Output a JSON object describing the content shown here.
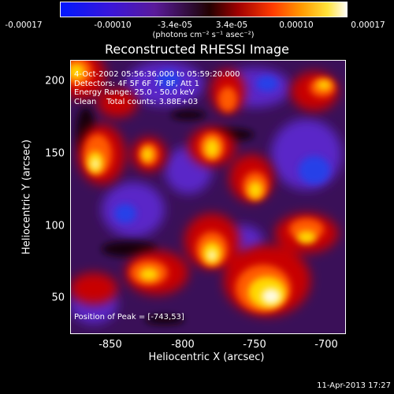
{
  "colorbar": {
    "ticks": [
      "-0.00017",
      "-0.00010",
      "-3.4e-05",
      "3.4e-05",
      "0.00010",
      "0.00017"
    ],
    "unit": "(photons cm⁻² s⁻¹ asec⁻²)"
  },
  "title": "Reconstructed RHESSI Image",
  "info": {
    "time_range": "4-Oct-2002 05:56:36.000 to 05:59:20.000",
    "detectors": "Detectors: 4F 5F 6F 7F 8F, Att 1",
    "energy": "Energy Range: 25.0 - 50.0 keV",
    "clean": "Clean    Total counts: 3.88E+03"
  },
  "peak_text": "Position of Peak = [-743,53]",
  "axes": {
    "xlabel": "Heliocentric X (arcsec)",
    "ylabel": "Heliocentric Y (arcsec)",
    "xticks": [
      "-850",
      "-800",
      "-750",
      "-700"
    ],
    "yticks": [
      "200",
      "150",
      "100",
      "50"
    ]
  },
  "timestamp": "11-Apr-2013 17:27"
}
